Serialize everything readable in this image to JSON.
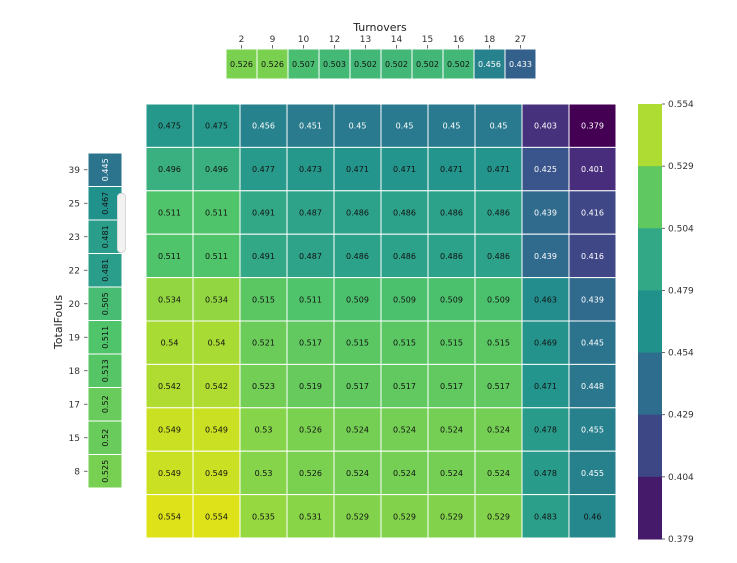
{
  "chart_data": {
    "type": "heatmap",
    "xlabel": "Turnovers",
    "ylabel": "TotalFouls",
    "x_categories": [
      "2",
      "9",
      "10",
      "12",
      "13",
      "14",
      "15",
      "16",
      "18",
      "27"
    ],
    "y_categories": [
      "39",
      "25",
      "23",
      "22",
      "20",
      "19",
      "18",
      "17",
      "15",
      "8"
    ],
    "matrix": [
      [
        0.475,
        0.475,
        0.456,
        0.451,
        0.45,
        0.45,
        0.45,
        0.45,
        0.403,
        0.379
      ],
      [
        0.496,
        0.496,
        0.477,
        0.473,
        0.471,
        0.471,
        0.471,
        0.471,
        0.425,
        0.401
      ],
      [
        0.511,
        0.511,
        0.491,
        0.487,
        0.486,
        0.486,
        0.486,
        0.486,
        0.439,
        0.416
      ],
      [
        0.511,
        0.511,
        0.491,
        0.487,
        0.486,
        0.486,
        0.486,
        0.486,
        0.439,
        0.416
      ],
      [
        0.534,
        0.534,
        0.515,
        0.511,
        0.509,
        0.509,
        0.509,
        0.509,
        0.463,
        0.439
      ],
      [
        0.54,
        0.54,
        0.521,
        0.517,
        0.515,
        0.515,
        0.515,
        0.515,
        0.469,
        0.445
      ],
      [
        0.542,
        0.542,
        0.523,
        0.519,
        0.517,
        0.517,
        0.517,
        0.517,
        0.471,
        0.448
      ],
      [
        0.549,
        0.549,
        0.53,
        0.526,
        0.524,
        0.524,
        0.524,
        0.524,
        0.478,
        0.455
      ],
      [
        0.549,
        0.549,
        0.53,
        0.526,
        0.524,
        0.524,
        0.524,
        0.524,
        0.478,
        0.455
      ],
      [
        0.554,
        0.554,
        0.535,
        0.531,
        0.529,
        0.529,
        0.529,
        0.529,
        0.483,
        0.46
      ]
    ],
    "col_marginal": [
      "0.526",
      "0.526",
      "0.507",
      "0.503",
      "0.502",
      "0.502",
      "0.502",
      "0.502",
      "0.456",
      "0.433"
    ],
    "row_marginal": [
      "0.445",
      "0.467",
      "0.481",
      "0.481",
      "0.505",
      "0.511",
      "0.513",
      "0.52",
      "0.52",
      "0.525"
    ],
    "colorbar": {
      "min": 0.379,
      "max": 0.554,
      "ticks": [
        "0.554",
        "0.529",
        "0.504",
        "0.479",
        "0.454",
        "0.429",
        "0.404",
        "0.379"
      ]
    },
    "colormap": [
      "#dde318",
      "#8bd646",
      "#4ec36b",
      "#2fa48a",
      "#21918c",
      "#2c728e",
      "#3b528b",
      "#472d7b",
      "#440154"
    ],
    "grid": true
  }
}
